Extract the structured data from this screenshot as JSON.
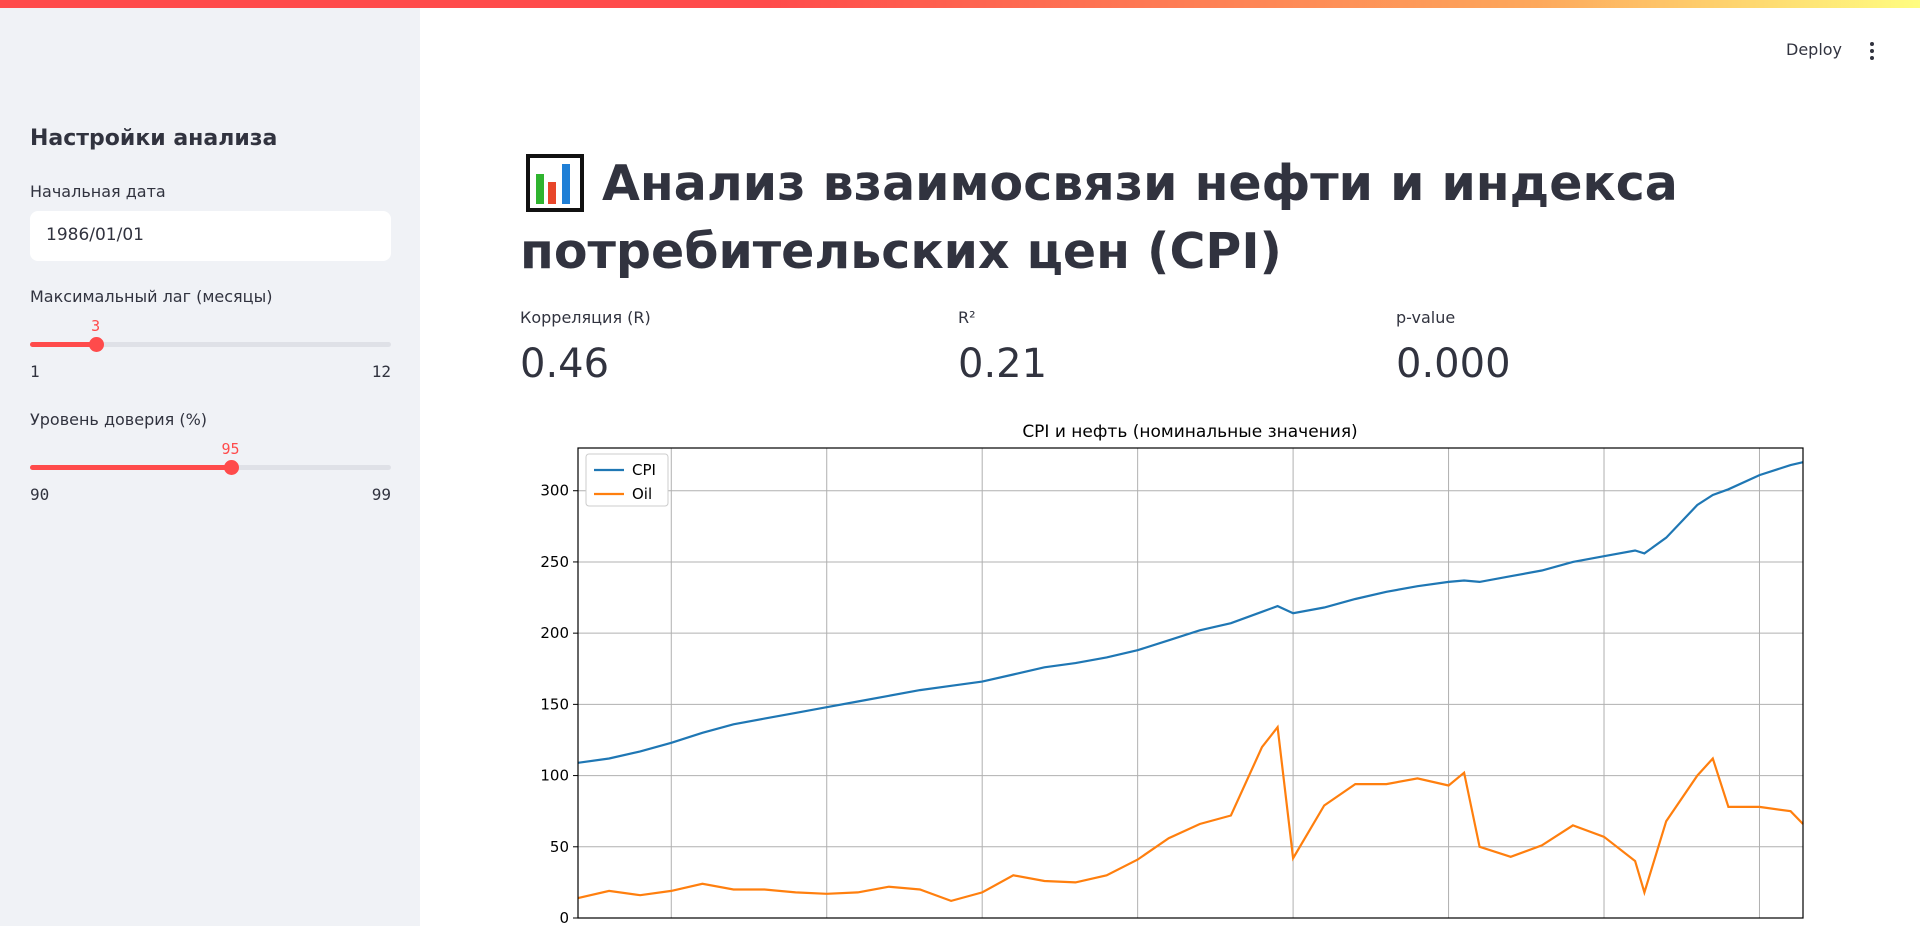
{
  "sidebar": {
    "title": "Настройки анализа",
    "start_date": {
      "label": "Начальная дата",
      "value": "1986/01/01"
    },
    "max_lag": {
      "label": "Максимальный лаг (месяцы)",
      "value": "3",
      "min": "1",
      "max": "12",
      "fraction": 0.1818
    },
    "confidence": {
      "label": "Уровень доверия (%)",
      "value": "95",
      "min": "90",
      "max": "99",
      "fraction": 0.5556
    }
  },
  "header": {
    "deploy_label": "Deploy",
    "menu_icon": "kebab-menu-icon"
  },
  "main": {
    "title_icon": "bar-chart-icon",
    "title": "Анализ взаимосвязи нефти и индекса потребительских цен (CPI)",
    "metrics": [
      {
        "label": "Корреляция (R)",
        "value": "0.46"
      },
      {
        "label": "R²",
        "value": "0.21"
      },
      {
        "label": "p-value",
        "value": "0.000"
      }
    ]
  },
  "colors": {
    "accent": "#ff4b4b",
    "cpi": "#1f77b4",
    "oil": "#ff7f0e"
  },
  "chart_data": {
    "type": "line",
    "title": "CPI и нефть (номинальные значения)",
    "xlabel": "",
    "ylabel": "",
    "ylim": [
      0,
      330
    ],
    "xlim": [
      1986.0,
      2025.4
    ],
    "yticks": [
      0,
      50,
      100,
      150,
      200,
      250,
      300
    ],
    "grid": true,
    "legend_position": "top-left",
    "x": [
      1986.0,
      1987.0,
      1988.0,
      1989.0,
      1990.0,
      1991.0,
      1992.0,
      1993.0,
      1994.0,
      1995.0,
      1996.0,
      1997.0,
      1998.0,
      1999.0,
      2000.0,
      2001.0,
      2002.0,
      2003.0,
      2004.0,
      2005.0,
      2006.0,
      2007.0,
      2008.0,
      2008.5,
      2009.0,
      2010.0,
      2011.0,
      2012.0,
      2013.0,
      2014.0,
      2014.5,
      2015.0,
      2016.0,
      2017.0,
      2018.0,
      2019.0,
      2020.0,
      2020.3,
      2021.0,
      2022.0,
      2022.5,
      2023.0,
      2024.0,
      2025.0,
      2025.4
    ],
    "series": [
      {
        "name": "CPI",
        "values": [
          109,
          112,
          117,
          123,
          130,
          136,
          140,
          144,
          148,
          152,
          156,
          160,
          163,
          166,
          171,
          176,
          179,
          183,
          188,
          195,
          202,
          207,
          215,
          219,
          214,
          218,
          224,
          229,
          233,
          236,
          237,
          236,
          240,
          244,
          250,
          254,
          258,
          256,
          267,
          290,
          297,
          301,
          311,
          318,
          320
        ]
      },
      {
        "name": "Oil",
        "values": [
          14,
          19,
          16,
          19,
          24,
          20,
          20,
          18,
          17,
          18,
          22,
          20,
          12,
          18,
          30,
          26,
          25,
          30,
          41,
          56,
          66,
          72,
          120,
          134,
          42,
          79,
          94,
          94,
          98,
          93,
          102,
          50,
          43,
          51,
          65,
          57,
          40,
          18,
          68,
          100,
          112,
          78,
          78,
          75,
          66
        ]
      }
    ]
  }
}
